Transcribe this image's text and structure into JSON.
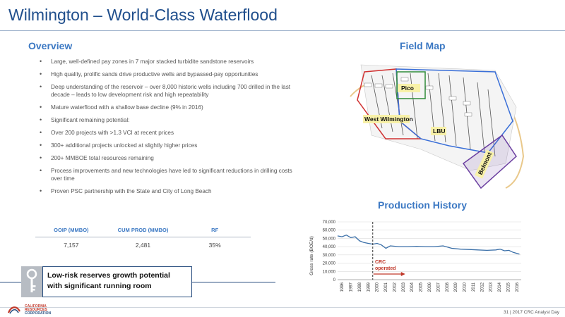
{
  "title": "Wilmington – World-Class Waterflood",
  "overview": {
    "heading": "Overview",
    "bullets": [
      "Large, well-defined pay zones in 7 major stacked turbidite sandstone reservoirs",
      "High quality, prolific sands drive productive wells and bypassed-pay opportunities",
      "Deep understanding of the reservoir – over 8,000 historic wells including 700 drilled in the last decade – leads to low development risk and high repeatability",
      "Mature waterflood with a shallow base decline (9% in 2016)",
      "Significant remaining potential:",
      "Over 200 projects with >1.3 VCI at recent prices",
      "300+ additional projects unlocked at slightly higher prices",
      "200+ MMBOE total resources remaining",
      "Process improvements and new technologies have led to significant reductions in drilling costs over time",
      "Proven PSC partnership with the State and City of Long Beach"
    ]
  },
  "stats": {
    "headers": [
      "OOIP (MMBO)",
      "CUM PROD (MMBO)",
      "RF"
    ],
    "values": [
      "7,157",
      "2,481",
      "35%"
    ]
  },
  "callout": {
    "line1": "Low-risk reserves growth potential",
    "line2": "with significant running room"
  },
  "field_map": {
    "heading": "Field Map",
    "labels": [
      "Pico",
      "West Wilmington",
      "LBU",
      "Belmont"
    ]
  },
  "production": {
    "heading": "Production History",
    "annotation_line1": "CRC",
    "annotation_line2": "operated"
  },
  "chart_data": {
    "type": "line",
    "ylabel": "Gross rate (BOE/d)",
    "ylim": [
      0,
      70000
    ],
    "yticks": [
      "0",
      "10,000",
      "20,000",
      "30,000",
      "40,000",
      "50,000",
      "60,000",
      "70,000"
    ],
    "categories": [
      "1996",
      "1997",
      "1998",
      "1999",
      "2000",
      "2001",
      "2002",
      "2003",
      "2004",
      "2005",
      "2006",
      "2007",
      "2008",
      "2009",
      "2010",
      "2011",
      "2012",
      "2013",
      "2014",
      "2015",
      "2016"
    ],
    "series": [
      {
        "x": [
          1996,
          1996.5,
          1997,
          1997.5,
          1998,
          1998.5,
          1999,
          1999.5,
          2000,
          2000.5,
          2001,
          2001.5,
          2002,
          2003,
          2004,
          2005,
          2006,
          2007,
          2008,
          2009,
          2010,
          2011,
          2012,
          2013,
          2014,
          2014.5,
          2015,
          2015.5,
          2016,
          2016.7
        ],
        "values": [
          53000,
          52000,
          54000,
          51000,
          52000,
          47000,
          45000,
          44000,
          43000,
          44000,
          42000,
          38000,
          41000,
          40000,
          40000,
          40500,
          40000,
          40000,
          41000,
          38000,
          37000,
          36500,
          36000,
          35500,
          36000,
          37000,
          35000,
          35500,
          33000,
          31000
        ]
      }
    ],
    "operator_start": 2000,
    "line_color": "#3a6fa8"
  },
  "footer": {
    "text": "31 | 2017 CRC Analyst Day",
    "logo_line1": "CALIFORNIA",
    "logo_line2": "RESOURCES",
    "logo_line3": "CORPORATION"
  }
}
